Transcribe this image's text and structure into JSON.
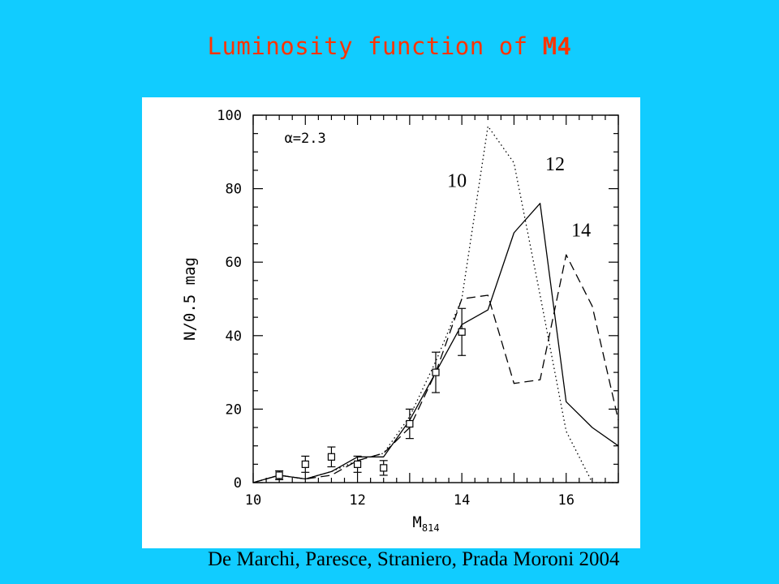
{
  "slide": {
    "title_prefix": "Luminosity function of ",
    "title_object": "M4",
    "citation": "De Marchi, Paresce, Straniero, Prada Moroni 2004",
    "title_color": "#ff3300",
    "background_color": "#11ccff"
  },
  "chart_data": {
    "type": "line",
    "title": "",
    "xlabel_main": "M",
    "xlabel_sub": "814",
    "ylabel": "N/0.5 mag",
    "xlim": [
      10,
      17
    ],
    "ylim": [
      0,
      100
    ],
    "xticks": [
      10,
      12,
      14,
      16
    ],
    "yticks": [
      0,
      20,
      40,
      60,
      80,
      100
    ],
    "annotation": "α=2.3",
    "grid": false,
    "series": [
      {
        "name": "10",
        "style": "dotted",
        "x": [
          10,
          10.5,
          11,
          11.5,
          12,
          12.5,
          13,
          13.5,
          14,
          14.5,
          15,
          15.5,
          16,
          16.5,
          17
        ],
        "y": [
          0,
          2,
          1,
          3,
          6,
          8,
          18,
          33,
          50,
          97,
          87,
          51,
          14,
          0,
          0
        ]
      },
      {
        "name": "12",
        "style": "solid",
        "x": [
          10,
          10.5,
          11,
          11.5,
          12,
          12.5,
          13,
          13.5,
          14,
          14.5,
          15,
          15.5,
          16,
          16.5,
          17
        ],
        "y": [
          0,
          2,
          1,
          3,
          7,
          7,
          17,
          30,
          43,
          47,
          68,
          76,
          22,
          15,
          10
        ]
      },
      {
        "name": "14",
        "style": "dashed",
        "x": [
          10,
          10.5,
          11,
          11.5,
          12,
          12.5,
          13,
          13.5,
          14,
          14.5,
          15,
          15.5,
          16,
          16.5,
          17
        ],
        "y": [
          0,
          2,
          1,
          2,
          6,
          8,
          15,
          30,
          50,
          51,
          27,
          28,
          62,
          48,
          17
        ]
      }
    ],
    "observed": {
      "x": [
        10.5,
        11,
        11.5,
        12,
        12.5,
        13,
        13.5,
        14
      ],
      "y": [
        2,
        5,
        7,
        5,
        4,
        16,
        30,
        41
      ],
      "err": [
        1.2,
        2.2,
        2.7,
        2.2,
        2,
        4,
        5.5,
        6.4
      ]
    }
  }
}
